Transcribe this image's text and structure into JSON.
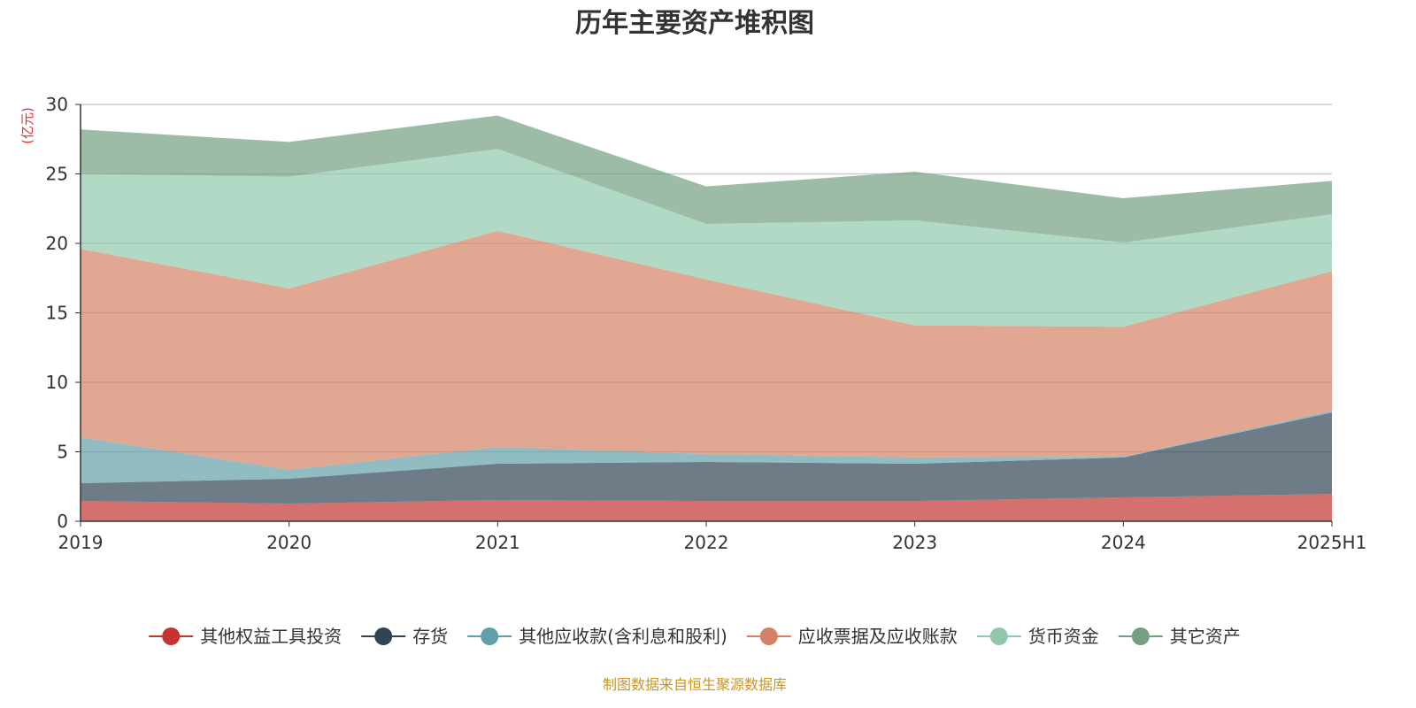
{
  "chart_data": {
    "type": "area",
    "stacked": true,
    "title": "历年主要资产堆积图",
    "ylabel": "(亿元)",
    "xlabel": "",
    "x": [
      "2019",
      "2020",
      "2021",
      "2022",
      "2023",
      "2024",
      "2025H1"
    ],
    "ylim": [
      0,
      30
    ],
    "yticks": [
      0,
      5,
      10,
      15,
      20,
      25,
      30
    ],
    "grid": true,
    "legend_position": "bottom",
    "series": [
      {
        "name": "其他权益工具投资",
        "color": "#c23531",
        "values": [
          1.46,
          1.27,
          1.53,
          1.46,
          1.46,
          1.72,
          1.97
        ]
      },
      {
        "name": "存货",
        "color": "#2f4554",
        "values": [
          1.28,
          1.79,
          2.61,
          2.81,
          2.68,
          2.87,
          5.86
        ]
      },
      {
        "name": "其他应收款(含利息和股利)",
        "color": "#61a0a8",
        "values": [
          3.31,
          0.64,
          1.21,
          0.57,
          0.45,
          0.06,
          0.13
        ]
      },
      {
        "name": "应收票据及应收账款",
        "color": "#d48265",
        "values": [
          13.55,
          13.05,
          15.55,
          12.56,
          9.51,
          9.35,
          10.04
        ]
      },
      {
        "name": "货币资金",
        "color": "#91c7ae",
        "values": [
          5.4,
          8.05,
          5.9,
          4.0,
          7.56,
          6.06,
          4.1
        ]
      },
      {
        "name": "其它资产",
        "color": "#749f83",
        "values": [
          3.2,
          2.5,
          2.4,
          2.7,
          3.5,
          3.19,
          2.4
        ]
      }
    ]
  },
  "source": "制图数据来自恒生聚源数据库"
}
